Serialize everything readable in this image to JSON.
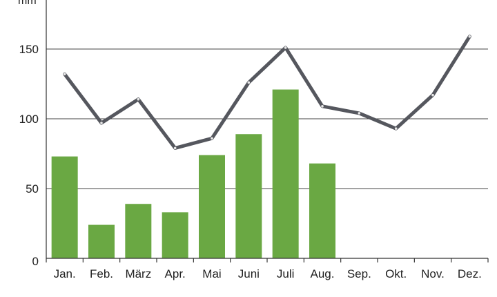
{
  "chart_data": {
    "type": "bar",
    "title": "",
    "xlabel": "",
    "ylabel": "mm",
    "categories": [
      "Jan.",
      "Feb.",
      "März",
      "Apr.",
      "Mai",
      "Juni",
      "Juli",
      "Aug.",
      "Sep.",
      "Okt.",
      "Nov.",
      "Dez."
    ],
    "yticks": [
      "0",
      "50",
      "100",
      "150"
    ],
    "ylim": [
      0,
      190
    ],
    "grid": true,
    "series": [
      {
        "type": "bar",
        "values": [
          73,
          24,
          39,
          33,
          74,
          89,
          121,
          68,
          null,
          null,
          null,
          null
        ],
        "color": "#6aa843"
      },
      {
        "type": "line",
        "values": [
          132,
          97,
          114,
          79,
          86,
          126,
          151,
          109,
          104,
          93,
          117,
          159
        ],
        "color": "#55575e"
      }
    ]
  }
}
